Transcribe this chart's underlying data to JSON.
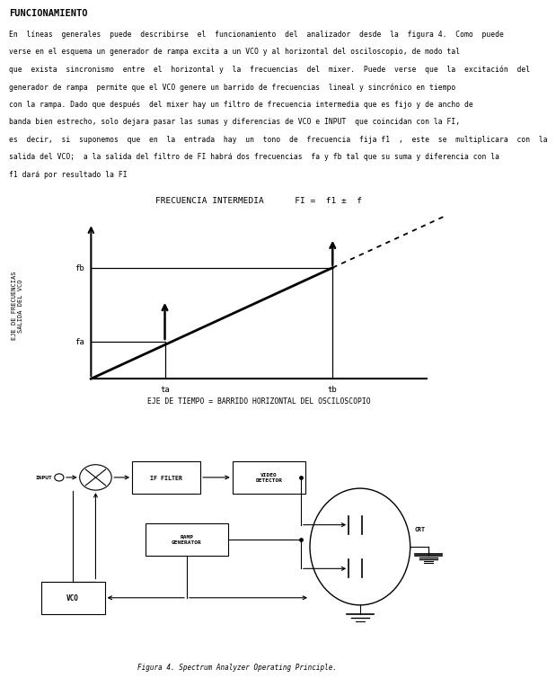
{
  "title": "FUNCIONAMIENTO",
  "lines": [
    "En  líneas  generales  puede  describirse  el  funcionamiento  del  analizador  desde  la  figura 4.  Como  puede",
    "verse en el esquema un generador de rampa excita a un VCO y al horizontal del osciloscopio, de modo tal",
    "que  exista  sincronismo  entre  el  horizontal y  la  frecuencias  del  mixer.  Puede  verse  que  la  excitación  del",
    "generador de rampa  permite que el VCO genere un barrido de frecuencias  lineal y sincrónico en tiempo",
    "con la rampa. Dado que después  del mixer hay un filtro de frecuencia intermedia que es fijo y de ancho de",
    "banda bien estrecho, solo dejara pasar las sumas y diferencias de VCO e INPUT  que coincidan con la FI,",
    "es  decir,  si  suponemos  que  en  la  entrada  hay  un  tono  de  frecuencia  fija f1  ,  este  se  multiplicara  con  la",
    "salida del VCO;  a la salida del filtro de FI habrá dos frecuencias  fa y fb tal que su suma y diferencia con la",
    "f1 dará por resultado la FI"
  ],
  "graph_title": "FRECUENCIA INTERMEDIA      FI =  f1 ±  f",
  "ylabel": "EJE DE FRECUENCIAS\nSALIDA DEL VCO",
  "xlabel": "EJE DE TIEMPO = BARRIDO HORIZONTAL DEL OSCILOSCOPIO",
  "fa": "fa",
  "fb": "fb",
  "ta": "ta",
  "tb": "tb",
  "fig_caption": "Figura 4. Spectrum Analyzer Operating Principle.",
  "bg_color": "#ffffff",
  "line_color": "#000000"
}
